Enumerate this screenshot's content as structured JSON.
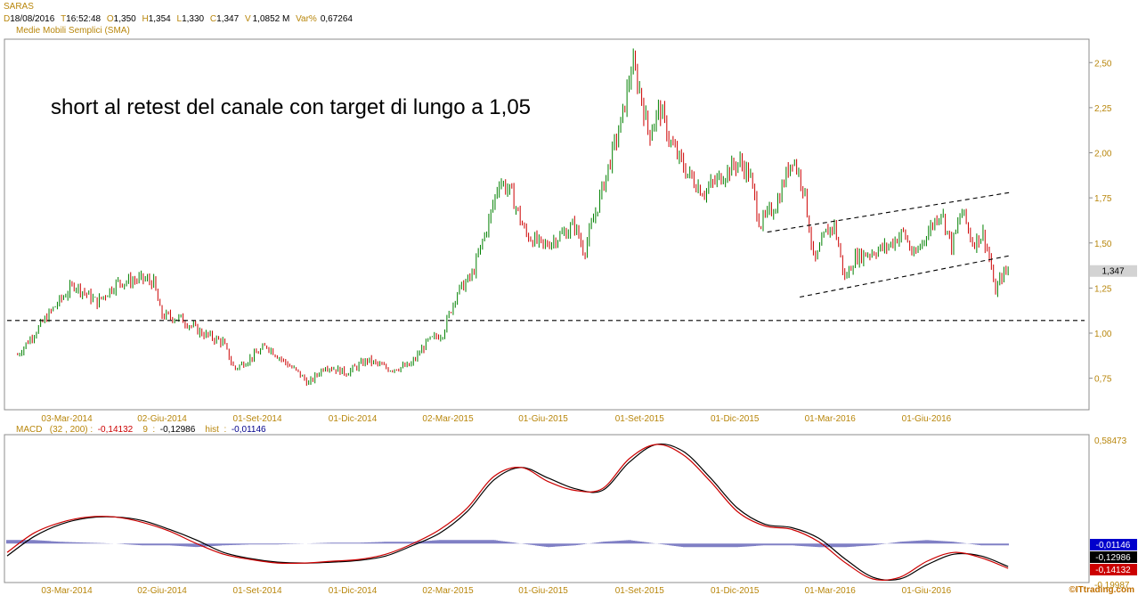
{
  "header": {
    "ticker": "SARAS",
    "fields": [
      {
        "label": "D",
        "value": "18/08/2016"
      },
      {
        "label": "T",
        "value": "16:52:48"
      },
      {
        "label": "O",
        "value": "1,350"
      },
      {
        "label": "H",
        "value": "1,354"
      },
      {
        "label": "L",
        "value": "1,330"
      },
      {
        "label": "C",
        "value": "1,347"
      },
      {
        "label": "V",
        "value": "1,0852 M"
      },
      {
        "label": "Var%",
        "value": "0,67264"
      }
    ],
    "indicator": "Medie Mobili Semplici (SMA)"
  },
  "annotation": "short al retest del canale con target di lungo a 1,05",
  "last_price_label": "1,347",
  "credit": "©ITtrading.com",
  "colors": {
    "up": "#008000",
    "down": "#cc0000",
    "macd_line": "#cc0000",
    "signal_line": "#000000",
    "histogram": "#00008b",
    "grid_text": "#b8860b"
  },
  "chart_data": [
    {
      "type": "candlestick",
      "title": "SARAS",
      "x_tick_labels": [
        "03-Mar-2014",
        "02-Giu-2014",
        "01-Set-2014",
        "01-Dic-2014",
        "02-Mar-2015",
        "01-Giu-2015",
        "01-Set-2015",
        "01-Dic-2015",
        "01-Mar-2016",
        "01-Giu-2016"
      ],
      "y_tick_labels": [
        "0,75",
        "1,00",
        "1,25",
        "1,50",
        "1,75",
        "2,00",
        "2,25",
        "2,50"
      ],
      "ylim": [
        0.6,
        2.6
      ],
      "support_level": 1.07,
      "channel_lines": [
        {
          "from": {
            "date": "2016-01",
            "value": 1.56
          },
          "to": {
            "date": "2016-08",
            "value": 1.78
          }
        },
        {
          "from": {
            "date": "2016-02",
            "value": 1.2
          },
          "to": {
            "date": "2016-08",
            "value": 1.43
          }
        }
      ],
      "close_path": [
        {
          "date": "2014-01-15",
          "close": 0.88
        },
        {
          "date": "2014-02-20",
          "close": 1.15
        },
        {
          "date": "2014-03-10",
          "close": 1.27
        },
        {
          "date": "2014-04-01",
          "close": 1.17
        },
        {
          "date": "2014-04-20",
          "close": 1.28
        },
        {
          "date": "2014-05-15",
          "close": 1.3
        },
        {
          "date": "2014-05-25",
          "close": 1.28
        },
        {
          "date": "2014-06-01",
          "close": 1.1
        },
        {
          "date": "2014-06-20",
          "close": 1.08
        },
        {
          "date": "2014-07-10",
          "close": 1.0
        },
        {
          "date": "2014-07-30",
          "close": 0.95
        },
        {
          "date": "2014-08-10",
          "close": 0.8
        },
        {
          "date": "2014-08-25",
          "close": 0.86
        },
        {
          "date": "2014-09-10",
          "close": 0.93
        },
        {
          "date": "2014-09-25",
          "close": 0.85
        },
        {
          "date": "2014-10-10",
          "close": 0.78
        },
        {
          "date": "2014-10-20",
          "close": 0.72
        },
        {
          "date": "2014-11-05",
          "close": 0.82
        },
        {
          "date": "2014-11-25",
          "close": 0.78
        },
        {
          "date": "2014-12-15",
          "close": 0.85
        },
        {
          "date": "2015-01-05",
          "close": 0.8
        },
        {
          "date": "2015-01-25",
          "close": 0.82
        },
        {
          "date": "2015-02-10",
          "close": 0.95
        },
        {
          "date": "2015-02-25",
          "close": 1.0
        },
        {
          "date": "2015-03-10",
          "close": 1.22
        },
        {
          "date": "2015-03-25",
          "close": 1.32
        },
        {
          "date": "2015-04-10",
          "close": 1.62
        },
        {
          "date": "2015-04-20",
          "close": 1.85
        },
        {
          "date": "2015-05-01",
          "close": 1.78
        },
        {
          "date": "2015-05-15",
          "close": 1.55
        },
        {
          "date": "2015-06-01",
          "close": 1.48
        },
        {
          "date": "2015-06-20",
          "close": 1.55
        },
        {
          "date": "2015-07-01",
          "close": 1.6
        },
        {
          "date": "2015-07-10",
          "close": 1.45
        },
        {
          "date": "2015-07-25",
          "close": 1.75
        },
        {
          "date": "2015-08-05",
          "close": 1.98
        },
        {
          "date": "2015-08-15",
          "close": 2.18
        },
        {
          "date": "2015-08-25",
          "close": 2.5
        },
        {
          "date": "2015-09-01",
          "close": 2.35
        },
        {
          "date": "2015-09-10",
          "close": 2.1
        },
        {
          "date": "2015-09-20",
          "close": 2.25
        },
        {
          "date": "2015-10-01",
          "close": 2.05
        },
        {
          "date": "2015-10-15",
          "close": 1.9
        },
        {
          "date": "2015-11-01",
          "close": 1.78
        },
        {
          "date": "2015-11-20",
          "close": 1.88
        },
        {
          "date": "2015-12-05",
          "close": 1.95
        },
        {
          "date": "2015-12-15",
          "close": 1.88
        },
        {
          "date": "2015-12-25",
          "close": 1.6
        },
        {
          "date": "2016-01-10",
          "close": 1.72
        },
        {
          "date": "2016-01-25",
          "close": 1.98
        },
        {
          "date": "2016-02-05",
          "close": 1.8
        },
        {
          "date": "2016-02-15",
          "close": 1.38
        },
        {
          "date": "2016-02-25",
          "close": 1.55
        },
        {
          "date": "2016-03-05",
          "close": 1.6
        },
        {
          "date": "2016-03-15",
          "close": 1.3
        },
        {
          "date": "2016-03-25",
          "close": 1.42
        },
        {
          "date": "2016-04-10",
          "close": 1.45
        },
        {
          "date": "2016-04-25",
          "close": 1.48
        },
        {
          "date": "2016-05-10",
          "close": 1.56
        },
        {
          "date": "2016-05-20",
          "close": 1.42
        },
        {
          "date": "2016-06-01",
          "close": 1.55
        },
        {
          "date": "2016-06-15",
          "close": 1.68
        },
        {
          "date": "2016-06-25",
          "close": 1.48
        },
        {
          "date": "2016-07-05",
          "close": 1.68
        },
        {
          "date": "2016-07-15",
          "close": 1.5
        },
        {
          "date": "2016-07-25",
          "close": 1.55
        },
        {
          "date": "2016-08-01",
          "close": 1.4
        },
        {
          "date": "2016-08-05",
          "close": 1.22
        },
        {
          "date": "2016-08-12",
          "close": 1.32
        },
        {
          "date": "2016-08-18",
          "close": 1.347
        }
      ]
    },
    {
      "type": "line",
      "title": "MACD",
      "params": "(32 , 200)",
      "readouts": {
        "macd": "-0,14132",
        "signal_period": "9",
        "signal": "-0,12986",
        "hist": "-0,01146"
      },
      "y_tick_labels": [
        "0,58473",
        "-0,19987"
      ],
      "ylim": [
        -0.2,
        0.585
      ],
      "series": [
        {
          "name": "MACD",
          "values": [
            -0.05,
            0.06,
            0.12,
            0.15,
            0.15,
            0.12,
            0.07,
            0.0,
            -0.06,
            -0.09,
            -0.11,
            -0.11,
            -0.1,
            -0.09,
            -0.06,
            0.0,
            0.08,
            0.2,
            0.38,
            0.43,
            0.35,
            0.3,
            0.31,
            0.48,
            0.56,
            0.5,
            0.35,
            0.18,
            0.1,
            0.08,
            0.01,
            -0.11,
            -0.2,
            -0.19,
            -0.1,
            -0.05,
            -0.08,
            -0.14
          ]
        },
        {
          "name": "Signal",
          "values": [
            -0.07,
            0.04,
            0.11,
            0.145,
            0.15,
            0.13,
            0.08,
            0.02,
            -0.05,
            -0.085,
            -0.105,
            -0.11,
            -0.105,
            -0.095,
            -0.07,
            -0.01,
            0.06,
            0.18,
            0.36,
            0.43,
            0.37,
            0.31,
            0.3,
            0.46,
            0.56,
            0.52,
            0.37,
            0.2,
            0.11,
            0.09,
            0.03,
            -0.09,
            -0.19,
            -0.2,
            -0.12,
            -0.06,
            -0.07,
            -0.13
          ]
        },
        {
          "name": "Hist",
          "values": [
            0.02,
            0.02,
            0.01,
            0.005,
            0.0,
            -0.01,
            -0.01,
            -0.02,
            -0.01,
            -0.005,
            -0.005,
            0.0,
            0.005,
            0.005,
            0.01,
            0.01,
            0.02,
            0.02,
            0.02,
            0.0,
            -0.02,
            -0.01,
            0.01,
            0.02,
            0.0,
            -0.02,
            -0.02,
            -0.02,
            -0.01,
            -0.01,
            -0.02,
            -0.02,
            -0.01,
            0.01,
            0.02,
            0.01,
            -0.01,
            -0.01
          ]
        }
      ]
    }
  ]
}
